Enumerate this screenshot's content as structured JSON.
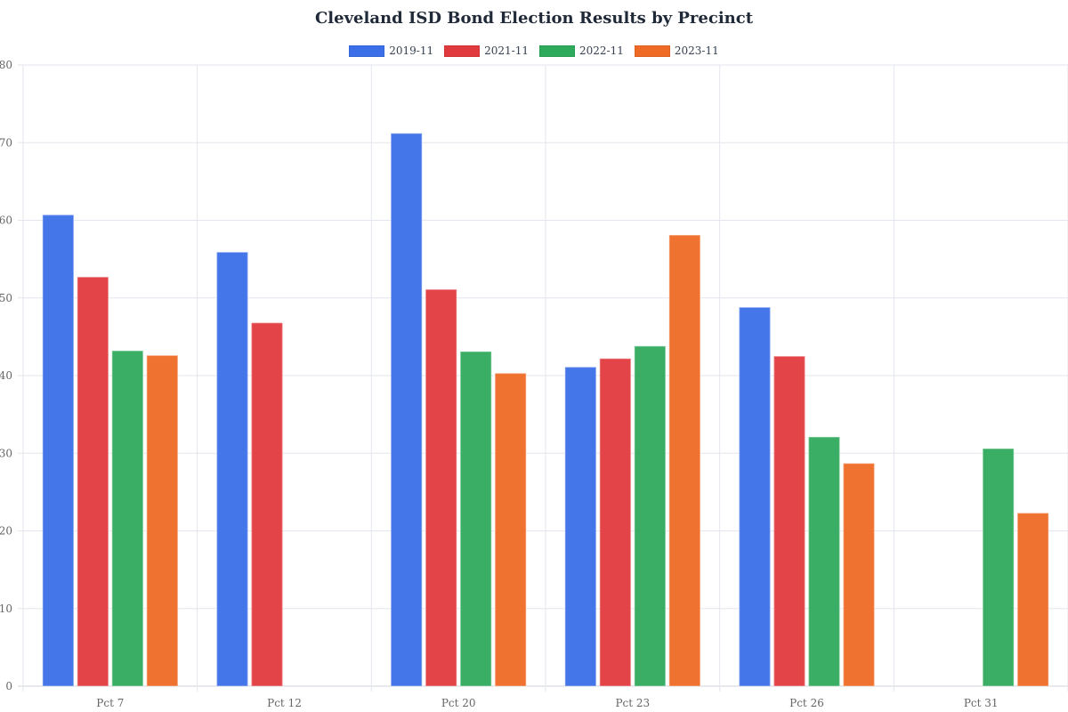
{
  "chart_data": {
    "type": "bar",
    "title": "Cleveland ISD Bond Election Results by Precinct",
    "xlabel": "",
    "ylabel": "",
    "ylim": [
      0,
      80
    ],
    "yticks": [
      0,
      10,
      20,
      30,
      40,
      50,
      60,
      70,
      80
    ],
    "grid": true,
    "legend_position": "top-center",
    "categories": [
      "Pct 7",
      "Pct 12",
      "Pct 20",
      "Pct 23",
      "Pct 26",
      "Pct 31"
    ],
    "series": [
      {
        "name": "2019-11",
        "color": "#3b6fe8",
        "values": [
          60.7,
          55.9,
          71.2,
          41.1,
          48.8,
          null
        ]
      },
      {
        "name": "2021-11",
        "color": "#e03a3e",
        "values": [
          52.7,
          46.8,
          51.1,
          42.2,
          42.5,
          null
        ]
      },
      {
        "name": "2022-11",
        "color": "#2eaa5c",
        "values": [
          43.2,
          null,
          43.1,
          43.8,
          32.1,
          30.6
        ]
      },
      {
        "name": "2023-11",
        "color": "#ef6a25",
        "values": [
          42.6,
          null,
          40.3,
          58.1,
          28.7,
          22.3
        ]
      }
    ]
  }
}
